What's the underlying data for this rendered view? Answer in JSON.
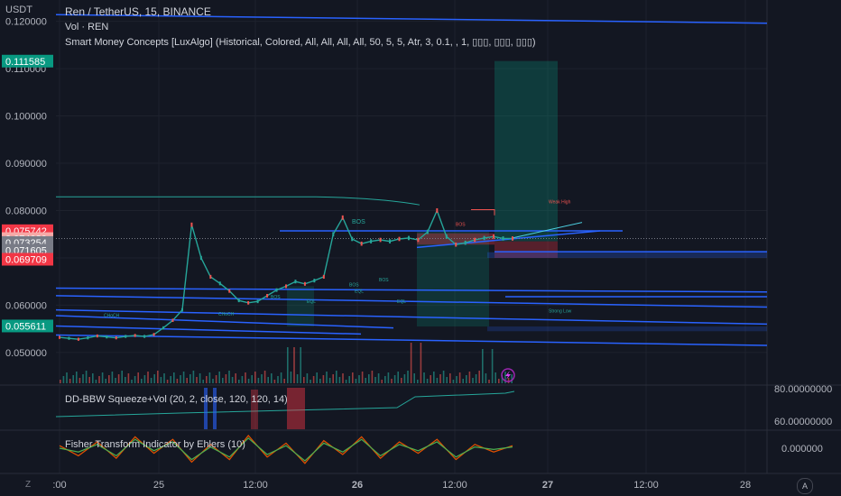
{
  "header": {
    "currency": "USDT",
    "symbol": "Ren / TetherUS, 15, BINANCE",
    "vol": "Vol · REN",
    "indicator": "Smart Money Concepts [LuxAlgo] (Historical, Colored, All, All, All, All, 50, 5, 5, Atr, 3, 0.1, , 1, ▯▯▯, ▯▯▯, ▯▯▯)"
  },
  "panes": {
    "bbw_title": "DD-BBW Squeeze+Vol (20, 2, close, 120, 120, 14)",
    "fisher_title": "Fisher Transform Indicator by Ehlers (10)",
    "bbw_ticks": [
      "80.00000000",
      "60.00000000"
    ],
    "fisher_tick": "0.000000"
  },
  "chart_data": {
    "type": "line",
    "title": "Ren / TetherUS, 15, BINANCE",
    "ylabel": "USDT",
    "ylim": [
      0.0435,
      0.1245
    ],
    "y_ticks": [
      0.05,
      0.06,
      0.07,
      0.08,
      0.09,
      0.1,
      0.11,
      0.12
    ],
    "x_ticks": [
      ":00",
      "25",
      "12:00",
      "26",
      "12:00",
      "27",
      "12:00",
      "28"
    ],
    "price_labels": [
      {
        "value": "0.111585",
        "color": "#089981"
      },
      {
        "value": "0.075742",
        "color": "#f23645"
      },
      {
        "value": "0.074080",
        "color": "#f7a9a7"
      },
      {
        "value": "0.073254",
        "color": "#787b86"
      },
      {
        "value": "0.071605",
        "color": "#787b86"
      },
      {
        "value": "0.069709",
        "color": "#f23645"
      },
      {
        "value": "0.055611",
        "color": "#089981"
      }
    ],
    "series": [
      {
        "color": "#26a69a",
        "x": [
          0,
          4,
          8,
          12,
          16,
          20,
          24,
          28,
          32,
          36,
          40,
          44,
          48,
          52,
          56,
          60,
          64,
          68,
          72,
          76,
          80,
          84,
          88,
          92,
          96,
          100,
          104,
          108,
          112,
          116,
          120,
          124,
          128,
          132,
          136,
          140,
          144,
          148,
          152,
          156,
          160,
          164,
          168,
          172,
          176,
          180,
          184,
          188,
          192
        ],
        "values": [
          0.0532,
          0.053,
          0.0528,
          0.0531,
          0.0535,
          0.0533,
          0.0531,
          0.0534,
          0.0536,
          0.0534,
          0.0538,
          0.0552,
          0.0568,
          0.059,
          0.077,
          0.07,
          0.066,
          0.0646,
          0.063,
          0.061,
          0.0605,
          0.0608,
          0.062,
          0.0632,
          0.064,
          0.065,
          0.0645,
          0.0652,
          0.066,
          0.075,
          0.0785,
          0.074,
          0.073,
          0.0735,
          0.0738,
          0.0735,
          0.074,
          0.0742,
          0.0738,
          0.0755,
          0.08,
          0.0745,
          0.0728,
          0.0732,
          0.0738,
          0.0742,
          0.0745,
          0.0741,
          0.0741
        ]
      }
    ],
    "annotations": [
      "BOS",
      "BOS",
      "BOS",
      "BOS",
      "BOS",
      "EQL",
      "EQL",
      "EQL",
      "CHoCH",
      "CHoCH",
      "Weak High",
      "Strong Low"
    ],
    "buy_zone": {
      "entry": 0.0735,
      "target": 0.1116,
      "stop": 0.07
    }
  },
  "fisher_data": {
    "x": [
      0,
      8,
      16,
      24,
      32,
      40,
      48,
      56,
      64,
      72,
      80,
      88,
      96,
      104,
      112,
      120,
      128,
      136,
      144,
      152,
      160,
      168,
      176,
      184,
      192
    ],
    "red": [
      0.2,
      -0.6,
      0.5,
      -0.8,
      0.9,
      -0.4,
      0.7,
      -1.1,
      0.3,
      -0.9,
      1.0,
      -0.7,
      0.4,
      -1.2,
      0.6,
      -0.5,
      0.9,
      -0.8,
      0.5,
      -0.4,
      0.7,
      -0.9,
      0.3,
      -0.3,
      0.2
    ],
    "green": [
      0.0,
      -0.3,
      0.3,
      -0.6,
      0.7,
      -0.2,
      0.5,
      -0.9,
      0.1,
      -0.7,
      0.8,
      -0.5,
      0.2,
      -1.0,
      0.4,
      -0.3,
      0.7,
      -0.6,
      0.3,
      -0.2,
      0.5,
      -0.7,
      0.1,
      -0.1,
      0.1
    ]
  },
  "colors": {
    "bg": "#131722",
    "grid": "#1e222d",
    "text": "#b2b5be",
    "blue_line": "#2962ff",
    "up": "#26a69a",
    "down": "#ef5350",
    "zone_green": "rgba(8,153,129,0.28)",
    "zone_red": "rgba(242,54,69,0.30)"
  }
}
